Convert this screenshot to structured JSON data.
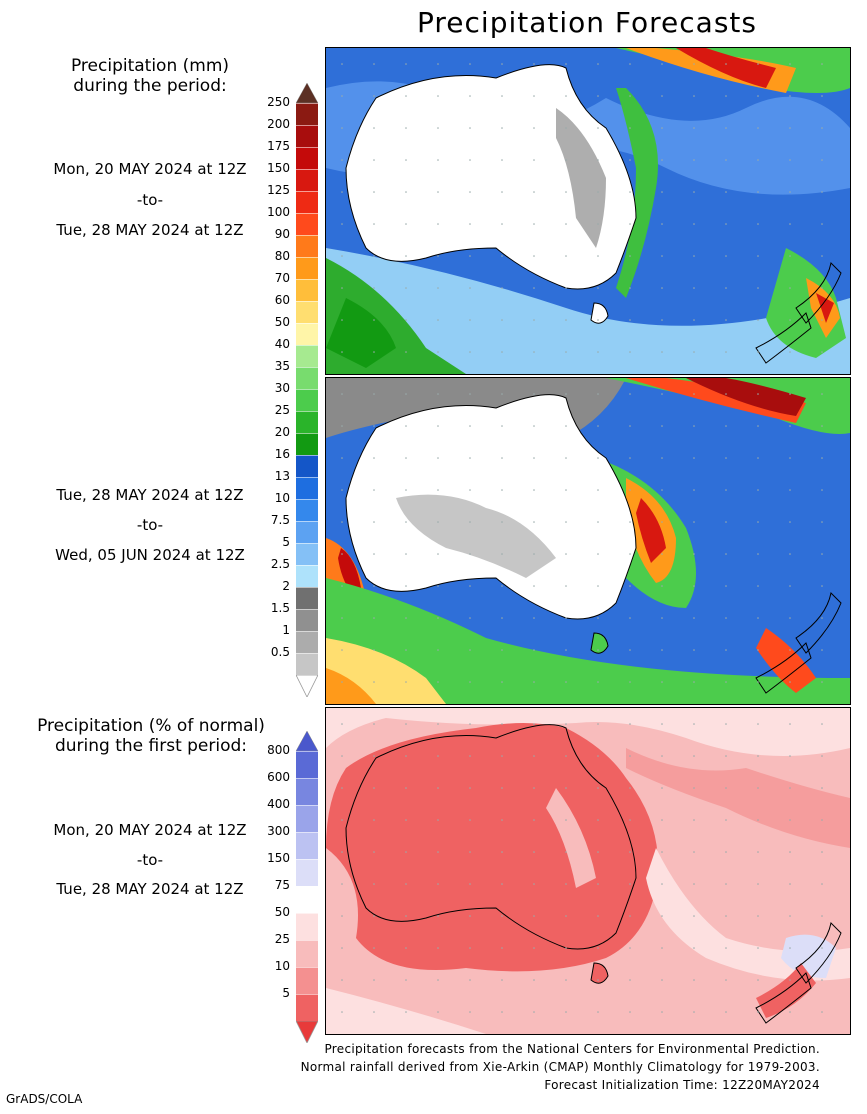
{
  "title": "Precipitation Forecasts",
  "period1": {
    "header_line1": "Precipitation (mm)",
    "header_line2": "during the period:",
    "start": "Mon, 20 MAY 2024 at 12Z",
    "to": "-to-",
    "end": "Tue, 28 MAY 2024 at 12Z"
  },
  "period2": {
    "start": "Tue, 28 MAY 2024 at 12Z",
    "to": "-to-",
    "end": "Wed, 05 JUN 2024 at 12Z"
  },
  "anomaly": {
    "header_line1": "Precipitation (% of normal)",
    "header_line2": "during the first period:",
    "start": "Mon, 20 MAY 2024 at 12Z",
    "to": "-to-",
    "end": "Tue, 28 MAY 2024 at 12Z"
  },
  "precip_scale": {
    "labels": [
      "250",
      "200",
      "175",
      "150",
      "125",
      "100",
      "90",
      "80",
      "70",
      "60",
      "50",
      "40",
      "35",
      "30",
      "25",
      "20",
      "16",
      "13",
      "10",
      "7.5",
      "5",
      "2.5",
      "2",
      "1.5",
      "1",
      "0.5"
    ],
    "colors": [
      "#8b1a12",
      "#a80d0d",
      "#c40a0a",
      "#d81810",
      "#ee2a14",
      "#ff4a1c",
      "#ff7a1a",
      "#ff9a1a",
      "#ffbe3a",
      "#ffde70",
      "#fff5a8",
      "#a6ea90",
      "#78dc6e",
      "#4ccc4c",
      "#2ab42a",
      "#129a12",
      "#1456c8",
      "#1e6ee0",
      "#3488ec",
      "#5ca2f2",
      "#84c0f6",
      "#aee2fb",
      "#707070",
      "#909090",
      "#acacac",
      "#c6c6c6"
    ],
    "top_arrow_color": "#5c3024",
    "bottom_arrow_color": "#ffffff"
  },
  "anomaly_scale": {
    "labels": [
      "800",
      "600",
      "400",
      "300",
      "150",
      "75",
      "50",
      "25",
      "10",
      "5"
    ],
    "colors": [
      "#5a6ad6",
      "#7886e0",
      "#9aa4ea",
      "#bcc2f2",
      "#dcdef8",
      "#ffffff",
      "#fde0e0",
      "#f8bcbc",
      "#f49090",
      "#ef6262"
    ],
    "top_arrow_color": "#4a58cc",
    "bottom_arrow_color": "#e83a3a"
  },
  "footer": {
    "line1": "Precipitation forecasts from the National Centers for Environmental Prediction.",
    "line2": "Normal rainfall derived from Xie-Arkin (CMAP) Monthly Climatology for 1979-2003.",
    "line3": "Forecast Initialization Time: 12Z20MAY2024"
  },
  "credit": "GrADS/COLA"
}
